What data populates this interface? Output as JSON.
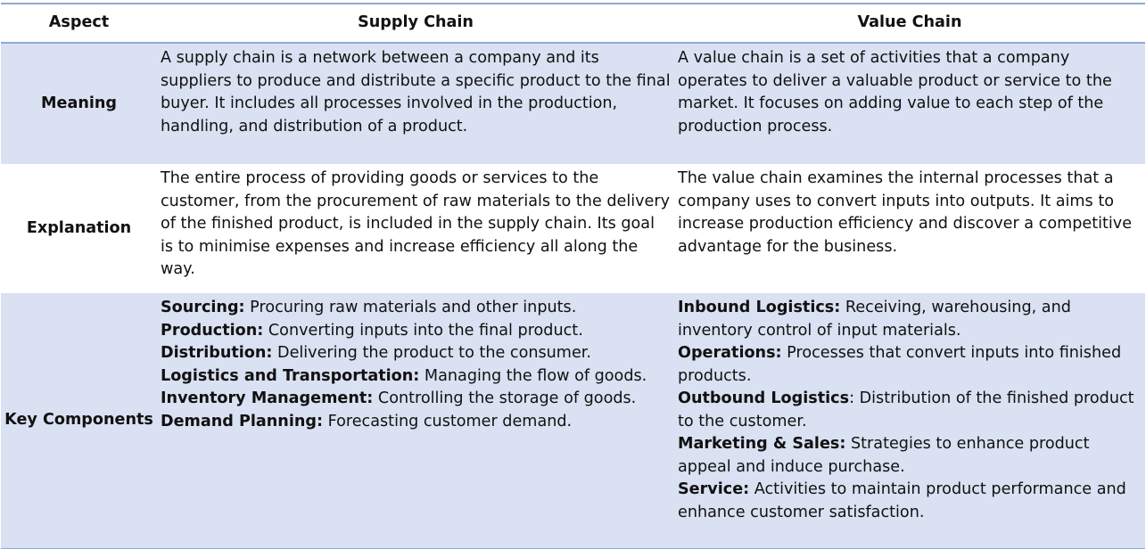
{
  "table": {
    "header": [
      "Aspect",
      "Supply Chain",
      "Value Chain"
    ],
    "rows": [
      {
        "aspect": "Meaning",
        "supply": "A supply chain is a network between a company and its suppliers to produce and distribute a specific product to the final buyer. It includes all processes involved in the production, handling, and distribution of a product.",
        "value": "A value chain is a set of activities that a company operates to deliver a valuable product or service to the market. It focuses on adding value to each step of the production process."
      },
      {
        "aspect": "Explanation",
        "supply": "The entire process of providing goods or services to the customer, from the procurement of raw materials to the delivery of the finished product, is included in the supply chain. Its goal is to minimise expenses and increase efficiency all along the way.",
        "value": "The value chain examines the internal processes that a company uses to convert inputs into outputs. It aims to increase production efficiency and discover a competitive advantage for the business."
      },
      {
        "aspect": "Key Components",
        "supply": [
          {
            "label": "Sourcing:",
            "text": " Procuring raw materials and other inputs."
          },
          {
            "label": "Production:",
            "text": " Converting inputs into the final product."
          },
          {
            "label": "Distribution:",
            "text": " Delivering the product to the consumer."
          },
          {
            "label": "Logistics and Transportation:",
            "text": " Managing the flow of goods."
          },
          {
            "label": "Inventory Management:",
            "text": " Controlling the storage of goods."
          },
          {
            "label": "Demand Planning:",
            "text": " Forecasting customer demand."
          }
        ],
        "value": [
          {
            "label": "Inbound Logistics:",
            "text": " Receiving, warehousing, and inventory control of input materials."
          },
          {
            "label": "Operations:",
            "text": " Processes that convert inputs into finished products."
          },
          {
            "label": "Outbound Logistics",
            "text": ": Distribution of the finished product to the customer."
          },
          {
            "label": "Marketing & Sales:",
            "text": " Strategies to enhance product appeal and induce purchase."
          },
          {
            "label": "Service:",
            "text": " Activities to maintain product performance and enhance customer satisfaction."
          }
        ]
      }
    ]
  }
}
